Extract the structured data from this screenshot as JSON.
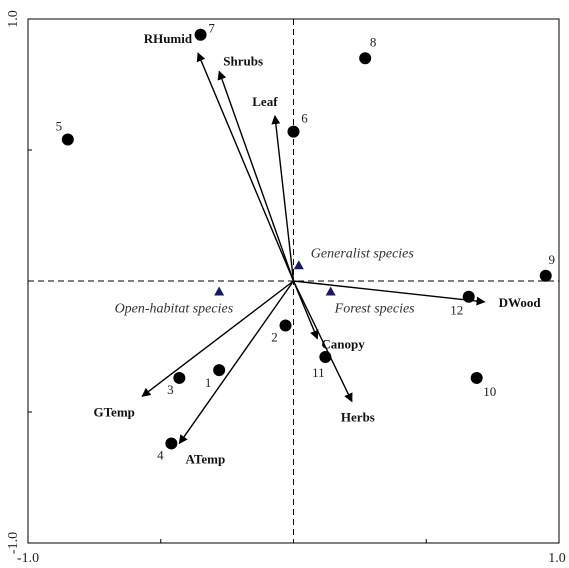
{
  "chart_data": {
    "type": "scatter",
    "xlim": [
      -1.0,
      1.0
    ],
    "ylim": [
      -1.0,
      1.0
    ],
    "x_tick_labels": [
      "-1.0",
      "1.0"
    ],
    "y_tick_labels": [
      "1.0",
      "-1.0"
    ],
    "colors": {
      "axis": "#000000",
      "point": "#000000",
      "species_marker": "#1a1a5e",
      "group_label": "#333333"
    },
    "sites": [
      {
        "label": "1",
        "x": -0.28,
        "y": -0.34
      },
      {
        "label": "2",
        "x": -0.03,
        "y": -0.17
      },
      {
        "label": "3",
        "x": -0.43,
        "y": -0.37
      },
      {
        "label": "4",
        "x": -0.46,
        "y": -0.62
      },
      {
        "label": "5",
        "x": -0.85,
        "y": 0.54
      },
      {
        "label": "6",
        "x": 0.0,
        "y": 0.57
      },
      {
        "label": "7",
        "x": -0.35,
        "y": 0.94
      },
      {
        "label": "8",
        "x": 0.27,
        "y": 0.85
      },
      {
        "label": "9",
        "x": 0.95,
        "y": 0.02
      },
      {
        "label": "10",
        "x": 0.69,
        "y": -0.37
      },
      {
        "label": "11",
        "x": 0.12,
        "y": -0.29
      },
      {
        "label": "12",
        "x": 0.66,
        "y": -0.06
      }
    ],
    "vectors": [
      {
        "label": "RHumid",
        "x": -0.36,
        "y": 0.87
      },
      {
        "label": "Shrubs",
        "x": -0.28,
        "y": 0.8
      },
      {
        "label": "Leaf",
        "x": -0.07,
        "y": 0.63
      },
      {
        "label": "DWood",
        "x": 0.72,
        "y": -0.08
      },
      {
        "label": "Canopy",
        "x": 0.09,
        "y": -0.22
      },
      {
        "label": "Herbs",
        "x": 0.22,
        "y": -0.46
      },
      {
        "label": "GTemp",
        "x": -0.57,
        "y": -0.44
      },
      {
        "label": "ATemp",
        "x": -0.43,
        "y": -0.62
      }
    ],
    "species_groups": [
      {
        "label": "Generalist species",
        "x": 0.02,
        "y": 0.06
      },
      {
        "label": "Open-habitat species",
        "x": -0.28,
        "y": -0.04
      },
      {
        "label": "Forest species",
        "x": 0.14,
        "y": -0.04
      }
    ]
  }
}
